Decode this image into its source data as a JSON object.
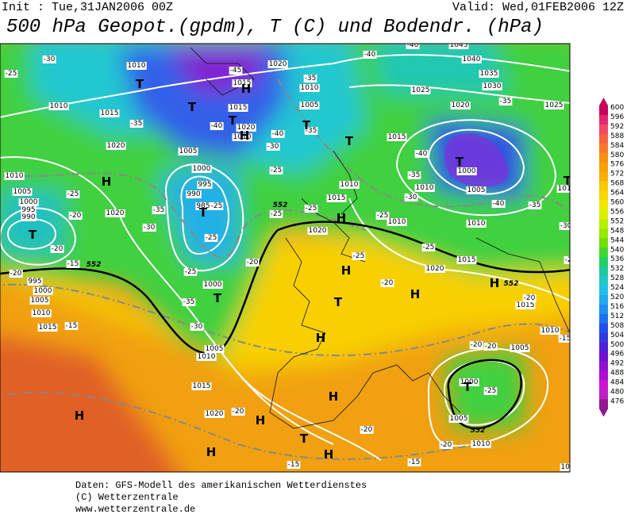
{
  "header": {
    "init": "Init : Tue,31JAN2006 00Z",
    "valid": "Valid: Wed,01FEB2006 12Z",
    "title": "500 hPa Geopot.(gpdm), T (C) und Bodendr. (hPa)"
  },
  "footer": [
    "Daten: GFS-Modell des amerikanischen Wetterdienstes",
    "(C) Wetterzentrale",
    "www.wetterzentrale.de"
  ],
  "colorbar": {
    "levels": [
      600,
      596,
      592,
      588,
      584,
      580,
      576,
      572,
      568,
      564,
      560,
      556,
      552,
      548,
      544,
      540,
      536,
      532,
      528,
      524,
      520,
      516,
      512,
      508,
      504,
      500,
      496,
      492,
      488,
      484,
      480,
      476
    ],
    "colors": [
      "#c8005a",
      "#e0286e",
      "#f04868",
      "#f86040",
      "#f87828",
      "#f89010",
      "#f8a000",
      "#f8b000",
      "#f8c800",
      "#f8d800",
      "#f0e800",
      "#d8f000",
      "#b8f000",
      "#98e800",
      "#70e000",
      "#40d830",
      "#20d060",
      "#20c8a0",
      "#20c8c8",
      "#20c0e8",
      "#20a8f0",
      "#2090f0",
      "#2070f0",
      "#2050e8",
      "#3038e0",
      "#5020d8",
      "#7010d0",
      "#9010d0",
      "#b010d0",
      "#d010d8",
      "#c020c0",
      "#901890"
    ]
  },
  "isobar_labels": [
    "1010",
    "1020",
    "1015",
    "1005",
    "1010",
    "1015",
    "1020",
    "1010",
    "1005",
    "1000",
    "995",
    "990",
    "985",
    "1015",
    "1020",
    "1010",
    "1005",
    "1000",
    "995",
    "990",
    "1020",
    "1015",
    "1010",
    "1020",
    "1020",
    "1015",
    "1010",
    "1010",
    "1005",
    "1000",
    "1010",
    "1015",
    "1025",
    "1020",
    "1030",
    "1035",
    "1040",
    "1045",
    "1025",
    "1010",
    "995",
    "1000",
    "1005",
    "1010",
    "1015",
    "1000",
    "1005",
    "1010",
    "1015",
    "1020",
    "1000",
    "1005",
    "1010",
    "1005",
    "1010",
    "1015",
    "1000",
    "1010"
  ],
  "temperature_labels": [
    "-30",
    "-25",
    "-35",
    "-35",
    "-30",
    "-25",
    "-20",
    "-20",
    "-15",
    "-20",
    "-15",
    "-35",
    "-30",
    "-25",
    "-25",
    "-40",
    "-45",
    "-40",
    "-35",
    "-35",
    "-30",
    "-25",
    "-25",
    "-25",
    "-20",
    "-25",
    "-25",
    "-20",
    "-20",
    "-20",
    "-15",
    "-25",
    "-20",
    "-20",
    "-15",
    "-20",
    "-15",
    "-20",
    "-25",
    "-30",
    "-35",
    "-40",
    "-30",
    "-35",
    "-40",
    "-35",
    "-40",
    "-40",
    "-25",
    "-25"
  ],
  "pressure_centers": [
    "T",
    "H",
    "T",
    "T",
    "H",
    "T",
    "T",
    "H",
    "T",
    "T",
    "T",
    "H",
    "H",
    "T",
    "H",
    "H",
    "H",
    "H",
    "T",
    "H",
    "H",
    "H",
    "T",
    "T",
    "H",
    "T"
  ],
  "contour_552_labels": [
    "552",
    "552",
    "552",
    "552"
  ]
}
